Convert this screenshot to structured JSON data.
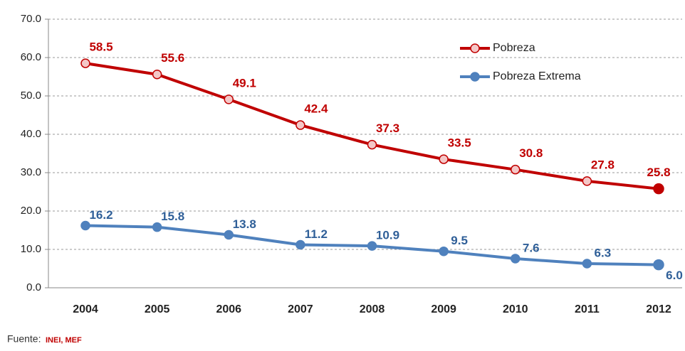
{
  "chart_data": {
    "type": "line",
    "categories": [
      "2004",
      "2005",
      "2006",
      "2007",
      "2008",
      "2009",
      "2010",
      "2011",
      "2012"
    ],
    "series": [
      {
        "name": "Pobreza",
        "color": "#c00000",
        "marker_fill": "#f4c7c7",
        "values": [
          58.5,
          55.6,
          49.1,
          42.4,
          37.3,
          33.5,
          30.8,
          27.8,
          25.8
        ],
        "value_labels": [
          "58.5",
          "55.6",
          "49.1",
          "42.4",
          "37.3",
          "33.5",
          "30.8",
          "27.8",
          "25.8"
        ]
      },
      {
        "name": "Pobreza Extrema",
        "color": "#4f81bd",
        "marker_fill": "#4f81bd",
        "values": [
          16.2,
          15.8,
          13.8,
          11.2,
          10.9,
          9.5,
          7.6,
          6.3,
          6.0
        ],
        "value_labels": [
          "16.2",
          "15.8",
          "13.8",
          "11.2",
          "10.9",
          "9.5",
          "7.6",
          "6.3",
          "6.0"
        ]
      }
    ],
    "ylim": [
      0,
      70
    ],
    "yticks": [
      {
        "value": 0,
        "label": "0.0"
      },
      {
        "value": 10,
        "label": "10.0"
      },
      {
        "value": 20,
        "label": "20.0"
      },
      {
        "value": 30,
        "label": "30.0"
      },
      {
        "value": 40,
        "label": "40.0"
      },
      {
        "value": 50,
        "label": "50.0"
      },
      {
        "value": 60,
        "label": "60.0"
      },
      {
        "value": 70,
        "label": "70.0"
      }
    ],
    "grid": true,
    "legend": "upper right",
    "source_label": "Fuente:",
    "source": "INEI, MEF"
  }
}
